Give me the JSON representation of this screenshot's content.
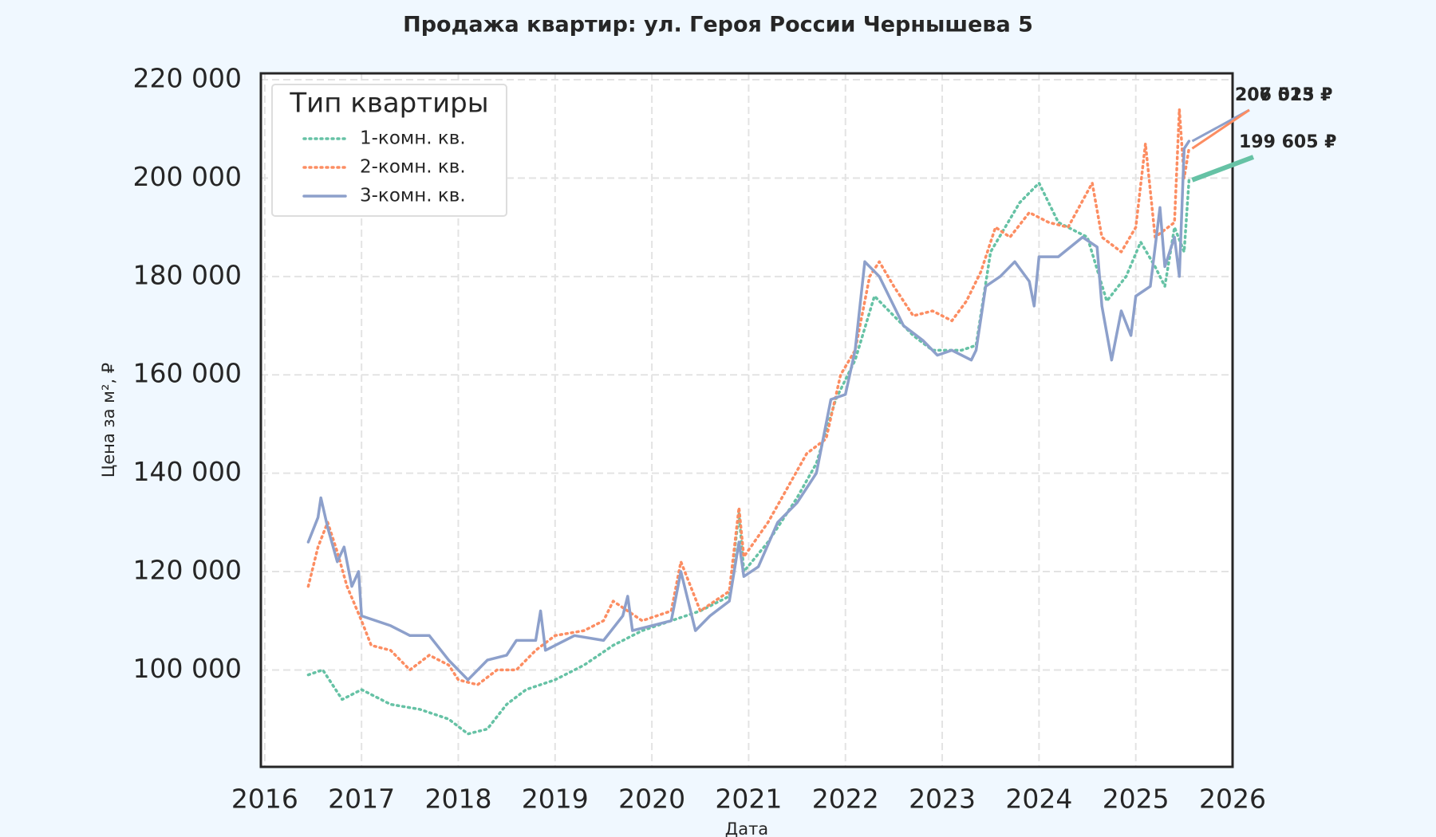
{
  "chart_data": {
    "type": "line",
    "title": "Продажа квартир: ул. Героя России Чернышева 5",
    "x_label": "Дата",
    "y_label": "Цена за м², ₽",
    "legend_title": "Тип квартиры",
    "legend": "upper left",
    "grid": true,
    "xlim": [
      2015.96,
      2026
    ],
    "xticks": [
      2016,
      2017,
      2018,
      2019,
      2020,
      2021,
      2022,
      2023,
      2024,
      2025,
      2026
    ],
    "ylim": [
      80300,
      221300
    ],
    "yticks": [
      {
        "value": 100000,
        "label": "100 000"
      },
      {
        "value": 120000,
        "label": "120 000"
      },
      {
        "value": 140000,
        "label": "140 000"
      },
      {
        "value": 160000,
        "label": "160 000"
      },
      {
        "value": 180000,
        "label": "180 000"
      },
      {
        "value": 200000,
        "label": "200 000"
      },
      {
        "value": 220000,
        "label": "220 000"
      }
    ],
    "series": [
      {
        "name": "1-комн. кв.",
        "color": "#66c2a5",
        "style": "dotted",
        "x": [
          2016.45,
          2016.6,
          2016.8,
          2017.0,
          2017.3,
          2017.6,
          2017.9,
          2018.1,
          2018.3,
          2018.5,
          2018.7,
          2019.0,
          2019.3,
          2019.6,
          2019.9,
          2020.2,
          2020.5,
          2020.8,
          2020.9,
          2020.95,
          2021.2,
          2021.5,
          2021.7,
          2021.9,
          2022.1,
          2022.3,
          2022.5,
          2022.7,
          2022.9,
          2023.2,
          2023.35,
          2023.5,
          2023.8,
          2024.0,
          2024.2,
          2024.5,
          2024.7,
          2024.9,
          2025.05,
          2025.2,
          2025.3,
          2025.4,
          2025.5,
          2025.55
        ],
        "values": [
          99000,
          100000,
          94000,
          96000,
          93000,
          92000,
          90000,
          87000,
          88000,
          93000,
          96000,
          98000,
          101000,
          105000,
          108000,
          110000,
          112000,
          115000,
          132000,
          120000,
          126000,
          135000,
          142000,
          155000,
          163000,
          176000,
          172000,
          168000,
          165000,
          165000,
          166000,
          185000,
          195000,
          199000,
          191000,
          188000,
          175000,
          180000,
          187000,
          182000,
          178000,
          190000,
          185000,
          199605
        ]
      },
      {
        "name": "2-комн. кв.",
        "color": "#fc8d62",
        "style": "dotted",
        "x": [
          2016.45,
          2016.55,
          2016.65,
          2016.75,
          2016.85,
          2017.0,
          2017.1,
          2017.3,
          2017.5,
          2017.7,
          2017.9,
          2018.0,
          2018.2,
          2018.4,
          2018.6,
          2018.8,
          2019.0,
          2019.3,
          2019.5,
          2019.6,
          2019.9,
          2020.2,
          2020.3,
          2020.5,
          2020.8,
          2020.9,
          2020.95,
          2021.2,
          2021.4,
          2021.6,
          2021.8,
          2021.95,
          2022.1,
          2022.25,
          2022.35,
          2022.5,
          2022.7,
          2022.9,
          2023.1,
          2023.25,
          2023.4,
          2023.55,
          2023.7,
          2023.9,
          2024.1,
          2024.3,
          2024.55,
          2024.65,
          2024.85,
          2025.0,
          2025.1,
          2025.2,
          2025.4,
          2025.45,
          2025.5,
          2025.55
        ],
        "values": [
          117000,
          125000,
          130000,
          124000,
          117000,
          110000,
          105000,
          104000,
          100000,
          103000,
          101000,
          98000,
          97000,
          100000,
          100000,
          104000,
          107000,
          108000,
          110000,
          114000,
          110000,
          112000,
          122000,
          112000,
          116000,
          133000,
          123000,
          130000,
          137000,
          144000,
          147000,
          160000,
          165000,
          180000,
          183000,
          178000,
          172000,
          173000,
          171000,
          175000,
          181000,
          190000,
          188000,
          193000,
          191000,
          190000,
          199000,
          188000,
          185000,
          190000,
          207000,
          188000,
          191000,
          214000,
          200000,
          206023
        ]
      },
      {
        "name": "3-комн. кв.",
        "color": "#8da0cb",
        "style": "solid",
        "x": [
          2016.45,
          2016.55,
          2016.58,
          2016.65,
          2016.75,
          2016.82,
          2016.9,
          2016.97,
          2017.0,
          2017.3,
          2017.5,
          2017.7,
          2017.9,
          2018.1,
          2018.3,
          2018.5,
          2018.6,
          2018.8,
          2018.85,
          2018.9,
          2019.2,
          2019.5,
          2019.7,
          2019.75,
          2019.8,
          2020.0,
          2020.2,
          2020.3,
          2020.45,
          2020.6,
          2020.8,
          2020.9,
          2020.95,
          2021.1,
          2021.3,
          2021.5,
          2021.7,
          2021.85,
          2022.0,
          2022.1,
          2022.2,
          2022.35,
          2022.45,
          2022.6,
          2022.8,
          2022.95,
          2023.1,
          2023.3,
          2023.35,
          2023.45,
          2023.6,
          2023.75,
          2023.9,
          2023.95,
          2024.0,
          2024.2,
          2024.45,
          2024.6,
          2024.65,
          2024.75,
          2024.85,
          2024.95,
          2025.0,
          2025.15,
          2025.25,
          2025.3,
          2025.4,
          2025.45,
          2025.5,
          2025.55
        ],
        "values": [
          126000,
          131000,
          135000,
          129000,
          122000,
          125000,
          117000,
          120000,
          111000,
          109000,
          107000,
          107000,
          102000,
          98000,
          102000,
          103000,
          106000,
          106000,
          112000,
          104000,
          107000,
          106000,
          111000,
          115000,
          108000,
          109000,
          110000,
          120000,
          108000,
          111000,
          114000,
          126000,
          119000,
          121000,
          130000,
          134000,
          140000,
          155000,
          156000,
          165000,
          183000,
          180000,
          176000,
          170000,
          167000,
          164000,
          165000,
          163000,
          165000,
          178000,
          180000,
          183000,
          179000,
          174000,
          184000,
          184000,
          188000,
          186000,
          174000,
          163000,
          173000,
          168000,
          176000,
          178000,
          194000,
          182000,
          188000,
          180000,
          206000,
          207515
        ]
      }
    ],
    "annotations": [
      {
        "series": 2,
        "x": 2025.55,
        "value": 207515,
        "label": "207 515 ₽"
      },
      {
        "series": 1,
        "x": 2025.55,
        "value": 206023,
        "label": "206 023 ₽"
      },
      {
        "series": 0,
        "x": 2025.55,
        "value": 199605,
        "label": "199 605 ₽"
      }
    ]
  }
}
